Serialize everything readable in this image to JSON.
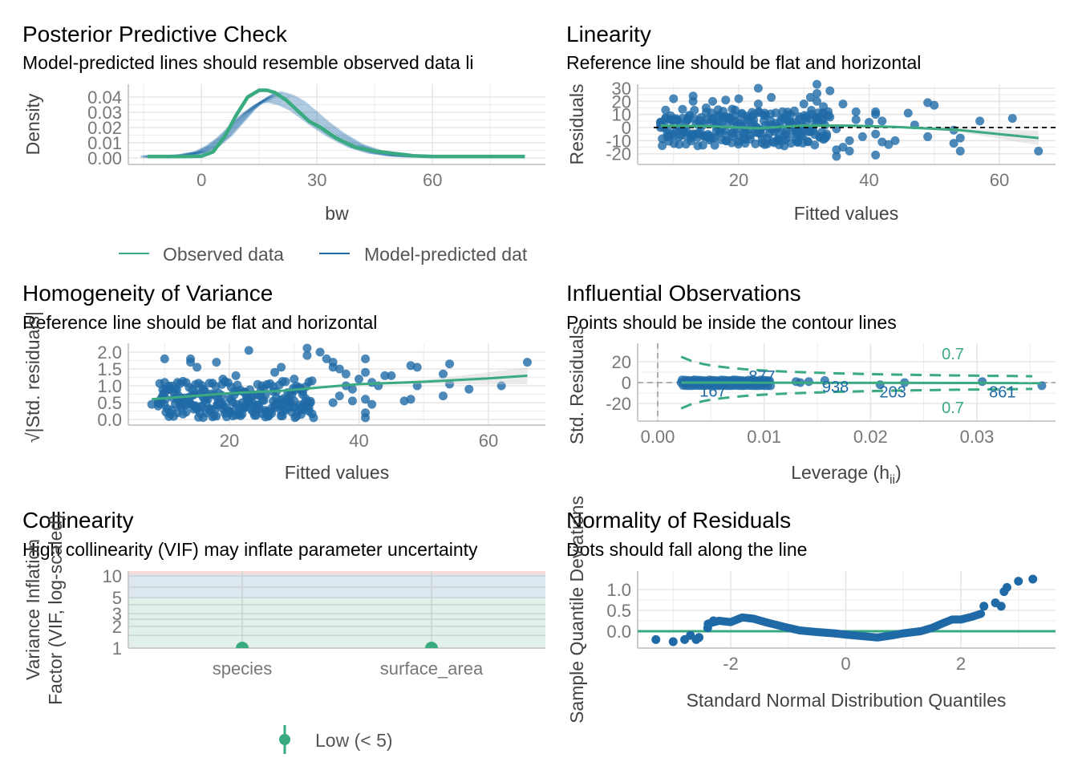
{
  "colors": {
    "observed": "#3aaa80",
    "predicted": "#1f6aa6",
    "point": "#1f6aa6",
    "reference_line": "#3aaa80",
    "contour": "#3aaa80",
    "vif_low_band": "#e1f1ea",
    "vif_moderate_band": "#dde7f0",
    "vif_high_band": "#f7dcdc"
  },
  "chart_data": [
    {
      "id": "ppc",
      "type": "line",
      "title": "Posterior Predictive Check",
      "subtitle": "Model-predicted lines should resemble observed data li",
      "xlabel": "bw",
      "ylabel": "Density",
      "xlim": [
        -14,
        84
      ],
      "ylim": [
        0,
        0.045
      ],
      "xticks": [
        0,
        30,
        60
      ],
      "yticks": [
        0.0,
        0.01,
        0.02,
        0.03,
        0.04
      ],
      "ytick_labels": [
        "0.00",
        "0.01",
        "0.02",
        "0.03",
        "0.04"
      ],
      "legend": {
        "position": "bottom",
        "entries": [
          "Observed data",
          "Model-predicted dat"
        ]
      },
      "series": [
        {
          "name": "Observed data",
          "x": [
            -14,
            -5,
            0,
            3,
            6,
            9,
            12,
            15,
            17,
            19,
            22,
            25,
            28,
            31,
            35,
            40,
            45,
            50,
            55,
            60,
            70,
            84
          ],
          "y": [
            0.001,
            0.001,
            0.0012,
            0.004,
            0.014,
            0.028,
            0.04,
            0.0445,
            0.0445,
            0.043,
            0.038,
            0.031,
            0.024,
            0.02,
            0.013,
            0.007,
            0.0045,
            0.003,
            0.0015,
            0.001,
            0.001,
            0.001
          ]
        },
        {
          "name": "Model-predicted data",
          "x": [
            -14,
            -5,
            0,
            3,
            6,
            9,
            12,
            15,
            17,
            19,
            22,
            25,
            28,
            31,
            35,
            40,
            45,
            50,
            55,
            60
          ],
          "y": [
            0.001,
            0.0015,
            0.004,
            0.008,
            0.014,
            0.022,
            0.03,
            0.036,
            0.039,
            0.04,
            0.038,
            0.034,
            0.028,
            0.022,
            0.015,
            0.008,
            0.004,
            0.002,
            0.0012,
            0.001
          ]
        }
      ]
    },
    {
      "id": "linearity",
      "type": "scatter",
      "title": "Linearity",
      "subtitle": "Reference line should be flat and horizontal",
      "xlabel": "Fitted values",
      "ylabel": "Residuals",
      "xlim": [
        4.5,
        68
      ],
      "ylim": [
        -23,
        32
      ],
      "xticks": [
        20,
        40,
        60
      ],
      "yticks": [
        -20,
        -10,
        0,
        10,
        20,
        30
      ],
      "reference_y": 0,
      "smooth": {
        "x": [
          8,
          15,
          23,
          30,
          37,
          44,
          48,
          54,
          60,
          66
        ],
        "y": [
          1.5,
          1,
          -0.5,
          1.5,
          1.5,
          0.5,
          -0.5,
          -2,
          -5,
          -8
        ]
      },
      "points": [
        [
          10,
          22
        ],
        [
          10,
          6
        ],
        [
          13,
          20
        ],
        [
          13,
          24
        ],
        [
          15,
          15
        ],
        [
          16,
          20
        ],
        [
          18,
          21
        ],
        [
          19,
          14
        ],
        [
          20,
          22
        ],
        [
          23,
          30
        ],
        [
          23,
          18
        ],
        [
          25,
          23
        ],
        [
          28,
          10
        ],
        [
          30,
          18
        ],
        [
          31,
          23
        ],
        [
          32,
          33
        ],
        [
          32,
          26
        ],
        [
          32,
          20
        ],
        [
          33,
          16
        ],
        [
          34,
          28
        ],
        [
          34,
          8
        ],
        [
          35,
          -1
        ],
        [
          35,
          -22
        ],
        [
          35,
          -17
        ],
        [
          36,
          -15
        ],
        [
          36,
          18
        ],
        [
          37,
          -18
        ],
        [
          37,
          -10
        ],
        [
          38,
          12
        ],
        [
          38,
          6
        ],
        [
          39,
          -7
        ],
        [
          40,
          4
        ],
        [
          41,
          10
        ],
        [
          41,
          12
        ],
        [
          41,
          -5
        ],
        [
          41,
          -21
        ],
        [
          42,
          5
        ],
        [
          42,
          -11
        ],
        [
          43,
          -13
        ],
        [
          44,
          -10
        ],
        [
          46,
          11
        ],
        [
          47,
          2
        ],
        [
          49,
          -7
        ],
        [
          49,
          19
        ],
        [
          50,
          17
        ],
        [
          53,
          -2
        ],
        [
          53,
          -12
        ],
        [
          54,
          -18
        ],
        [
          54,
          -8
        ],
        [
          57,
          5
        ],
        [
          62,
          7
        ],
        [
          66,
          -18
        ],
        [
          8,
          0
        ],
        [
          9,
          -1
        ],
        [
          11,
          2
        ],
        [
          12,
          -3
        ],
        [
          14,
          -5
        ],
        [
          16,
          -8
        ],
        [
          17,
          3
        ],
        [
          18,
          -10
        ],
        [
          19,
          5
        ],
        [
          20,
          -6
        ],
        [
          21,
          -12
        ],
        [
          22,
          8
        ],
        [
          23,
          -4
        ],
        [
          24,
          -13
        ],
        [
          25,
          2
        ],
        [
          26,
          -9
        ],
        [
          27,
          -14
        ],
        [
          28,
          4
        ],
        [
          29,
          -11
        ],
        [
          30,
          -2
        ],
        [
          31,
          7
        ],
        [
          33,
          -9
        ],
        [
          12,
          5
        ],
        [
          15,
          -7
        ],
        [
          17,
          9
        ],
        [
          21,
          -3
        ],
        [
          24,
          11
        ],
        [
          26,
          -10
        ],
        [
          27,
          6
        ],
        [
          29,
          -5
        ]
      ]
    },
    {
      "id": "homogeneity",
      "type": "scatter",
      "title": "Homogeneity of Variance",
      "subtitle": "Reference line should be flat and horizontal",
      "xlabel": "Fitted values",
      "ylabel": "√|Std. residuals|",
      "xlim": [
        4.5,
        68
      ],
      "ylim": [
        0,
        2.15
      ],
      "xticks": [
        20,
        40,
        60
      ],
      "yticks": [
        0.0,
        0.5,
        1.0,
        1.5,
        2.0
      ],
      "ytick_labels": [
        "0.0",
        "0.5",
        "1.0",
        "1.5",
        "2.0"
      ],
      "smooth": {
        "x": [
          8,
          20,
          28,
          40,
          50,
          60,
          66
        ],
        "y": [
          0.6,
          0.78,
          0.85,
          1.05,
          1.12,
          1.22,
          1.3
        ]
      },
      "points": [
        [
          10,
          1.8
        ],
        [
          10,
          1.1
        ],
        [
          8,
          0.45
        ],
        [
          12,
          1.1
        ],
        [
          14,
          1.8
        ],
        [
          14,
          1.7
        ],
        [
          15,
          1.55
        ],
        [
          18,
          1.7
        ],
        [
          23,
          2.05
        ],
        [
          28,
          1.55
        ],
        [
          30,
          1.2
        ],
        [
          32,
          2.15
        ],
        [
          32,
          1.9
        ],
        [
          34,
          2.0
        ],
        [
          35,
          1.8
        ],
        [
          36,
          1.7
        ],
        [
          36,
          1.55
        ],
        [
          37,
          1.5
        ],
        [
          38,
          1.35
        ],
        [
          38,
          1.0
        ],
        [
          39,
          0.55
        ],
        [
          40,
          1.2
        ],
        [
          41,
          1.8
        ],
        [
          41,
          1.4
        ],
        [
          41,
          0.6
        ],
        [
          41,
          0.2
        ],
        [
          41,
          0.05
        ],
        [
          42,
          0.45
        ],
        [
          42,
          1.1
        ],
        [
          43,
          1.0
        ],
        [
          44,
          1.3
        ],
        [
          45,
          1.3
        ],
        [
          47,
          0.55
        ],
        [
          48,
          0.6
        ],
        [
          48,
          1.6
        ],
        [
          49,
          1.55
        ],
        [
          49,
          1.0
        ],
        [
          53,
          1.35
        ],
        [
          53,
          0.7
        ],
        [
          54,
          1.65
        ],
        [
          54,
          1.05
        ],
        [
          57,
          0.9
        ],
        [
          62,
          1.0
        ],
        [
          66,
          1.7
        ],
        [
          36,
          0.5
        ],
        [
          37,
          0.7
        ],
        [
          39,
          0.9
        ],
        [
          12,
          0.2
        ],
        [
          15,
          0.35
        ],
        [
          18,
          0.1
        ],
        [
          20,
          0.2
        ],
        [
          22,
          0.5
        ],
        [
          24,
          0.3
        ],
        [
          26,
          0.1
        ],
        [
          28,
          0.25
        ],
        [
          30,
          0.55
        ],
        [
          31,
          0.3
        ],
        [
          33,
          0.05
        ],
        [
          16,
          0.9
        ],
        [
          19,
          1.2
        ],
        [
          21,
          1.3
        ],
        [
          25,
          1.0
        ],
        [
          27,
          1.4
        ],
        [
          29,
          0.8
        ]
      ]
    },
    {
      "id": "influential",
      "type": "scatter",
      "title": "Influential Observations",
      "subtitle": "Points should be inside the contour lines",
      "xlabel": "Leverage (h",
      "xlabel_sub": "ii",
      "xlabel_close": ")",
      "ylabel": "Std. Residuals",
      "xlim": [
        -0.0018,
        0.0372
      ],
      "ylim": [
        -37,
        37
      ],
      "xticks": [
        0.0,
        0.01,
        0.02,
        0.03
      ],
      "xtick_labels": [
        "0.00",
        "0.01",
        "0.02",
        "0.03"
      ],
      "yticks": [
        -20,
        0,
        20
      ],
      "contour_label": "0.7",
      "labels": [
        {
          "text": "167",
          "x": 0.0052,
          "y": -8
        },
        {
          "text": "877",
          "x": 0.0098,
          "y": 6
        },
        {
          "text": "938",
          "x": 0.0167,
          "y": -4
        },
        {
          "text": "203",
          "x": 0.0221,
          "y": -9
        },
        {
          "text": "861",
          "x": 0.0324,
          "y": -9
        }
      ],
      "points": [
        [
          0.013,
          1
        ],
        [
          0.0134,
          0
        ],
        [
          0.0142,
          1
        ],
        [
          0.0157,
          2
        ],
        [
          0.0209,
          -2
        ],
        [
          0.0232,
          0
        ],
        [
          0.0305,
          1
        ],
        [
          0.0361,
          -3
        ]
      ]
    },
    {
      "id": "collinearity",
      "type": "scatter",
      "title": "Collinearity",
      "subtitle": "High collinearity (VIF) may inflate parameter uncertainty",
      "xlabel": "",
      "ylabel": "Variance Inflation\nFactor (VIF, log-scaled)",
      "ylabel_lines": [
        "Variance Inflation",
        "Factor (VIF, log-scaled)"
      ],
      "categories": [
        "species",
        "surface_area"
      ],
      "values": [
        1.0,
        1.0
      ],
      "yscale": "log",
      "ylim": [
        1,
        11
      ],
      "yticks": [
        1,
        2,
        3,
        5,
        10
      ],
      "legend": {
        "position": "bottom",
        "entries": [
          "Low (< 5)"
        ]
      }
    },
    {
      "id": "normality",
      "type": "scatter",
      "title": "Normality of Residuals",
      "subtitle": "Dots should fall along the line",
      "xlabel": "Standard Normal Distribution Quantiles",
      "ylabel": "Sample Quantile Deviations",
      "xlim": [
        -3.6,
        3.6
      ],
      "ylim": [
        -0.25,
        1.4
      ],
      "xticks": [
        -2,
        0,
        2
      ],
      "yticks": [
        0.0,
        0.5,
        1.0
      ],
      "ytick_labels": [
        "0.0",
        "0.5",
        "1.0"
      ],
      "reference_y": 0,
      "points_outliers": [
        [
          -3.3,
          -0.2
        ],
        [
          -3.0,
          -0.25
        ],
        [
          -2.8,
          -0.2
        ],
        [
          -2.7,
          -0.1
        ],
        [
          -2.6,
          -0.2
        ],
        [
          -2.55,
          -0.15
        ],
        [
          -2.4,
          0.08
        ],
        [
          -2.3,
          0.25
        ],
        [
          2.4,
          0.6
        ],
        [
          2.6,
          0.68
        ],
        [
          2.7,
          0.6
        ],
        [
          2.75,
          0.95
        ],
        [
          2.8,
          1.05
        ],
        [
          3.0,
          1.2
        ],
        [
          3.25,
          1.25
        ]
      ],
      "curve": {
        "x": [
          -2.4,
          -2.2,
          -2.0,
          -1.8,
          -1.6,
          -1.4,
          -1.2,
          -1.0,
          -0.8,
          -0.5,
          -0.2,
          0.0,
          0.3,
          0.55,
          0.8,
          1.0,
          1.3,
          1.5,
          1.7,
          1.85,
          2.0,
          2.2,
          2.35
        ],
        "y": [
          0.18,
          0.25,
          0.22,
          0.33,
          0.3,
          0.22,
          0.15,
          0.08,
          0.02,
          -0.02,
          -0.05,
          -0.08,
          -0.12,
          -0.15,
          -0.1,
          -0.05,
          0.0,
          0.08,
          0.2,
          0.28,
          0.28,
          0.35,
          0.42
        ]
      }
    }
  ]
}
